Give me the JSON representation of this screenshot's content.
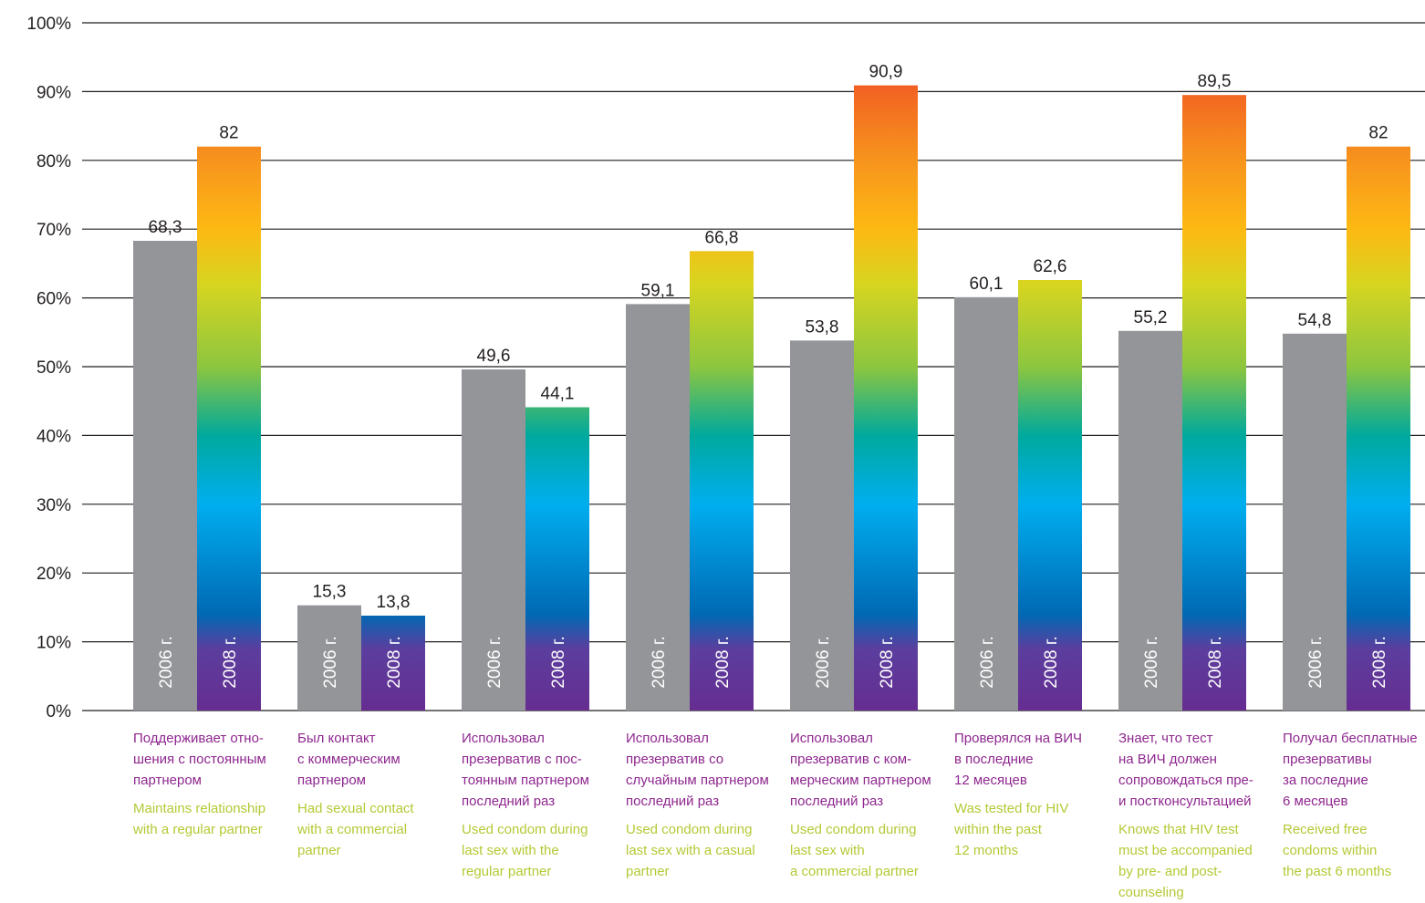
{
  "chart_data": {
    "type": "bar",
    "ylim": [
      0,
      100
    ],
    "grid": true,
    "y_ticks": [
      "0%",
      "10%",
      "20%",
      "30%",
      "40%",
      "50%",
      "60%",
      "70%",
      "80%",
      "90%",
      "100%"
    ],
    "categories": [
      {
        "ru": "Поддерживает отно-\nшения с постоянным\nпартнером",
        "en": "Maintains relationship\nwith a regular partner"
      },
      {
        "ru": "Был контакт\nс коммерческим\nпартнером",
        "en": "Had sexual contact\nwith a commercial\npartner"
      },
      {
        "ru": "Использовал\nпрезерватив с пос-\nтоянным партнером\nпоследний раз",
        "en": "Used condom during\nlast sex with the\nregular partner"
      },
      {
        "ru": "Использовал\nпрезерватив со\nслучайным партнером\nпоследний раз",
        "en": "Used condom during\nlast sex with a casual\npartner"
      },
      {
        "ru": "Использовал\nпрезерватив с ком-\nмерческим партнером\nпоследний раз",
        "en": "Used condom during\nlast sex with\na commercial partner"
      },
      {
        "ru": "Проверялся на ВИЧ\nв последние\n12 месяцев",
        "en": "Was tested for HIV\nwithin the past\n12 months"
      },
      {
        "ru": "Знает, что тест\nна ВИЧ должен\nсопровождаться пре-\nи постконсультацией",
        "en": "Knows that HIV test\nmust be accompanied\nby pre- and post-\ncounseling"
      },
      {
        "ru": "Получал бесплатные\nпрезервативы\nза последние\n6 месяцев",
        "en": "Received free\ncondoms within\nthe past 6 months"
      }
    ],
    "series": [
      {
        "name": "2006 г.",
        "color": "#939598",
        "values": [
          68.3,
          15.3,
          49.6,
          59.1,
          53.8,
          60.1,
          55.2,
          54.8
        ],
        "labels": [
          "68,3",
          "15,3",
          "49,6",
          "59,1",
          "53,8",
          "60,1",
          "55,2",
          "54,8"
        ]
      },
      {
        "name": "2008 г.",
        "color": "rainbow",
        "values": [
          82,
          13.8,
          44.1,
          66.8,
          90.9,
          62.6,
          89.5,
          82
        ],
        "labels": [
          "82",
          "13,8",
          "44,1",
          "66,8",
          "90,9",
          "62,6",
          "89,5",
          "82"
        ]
      }
    ],
    "colors": {
      "grey": "#939598",
      "caption_ru": "#8e278f",
      "caption_en": "#b5c935",
      "rainbow": [
        "#662d91",
        "#0072bc",
        "#00aeef",
        "#00a99d",
        "#8dc63f",
        "#fdb913",
        "#f7941d",
        "#ed1c24"
      ]
    }
  }
}
